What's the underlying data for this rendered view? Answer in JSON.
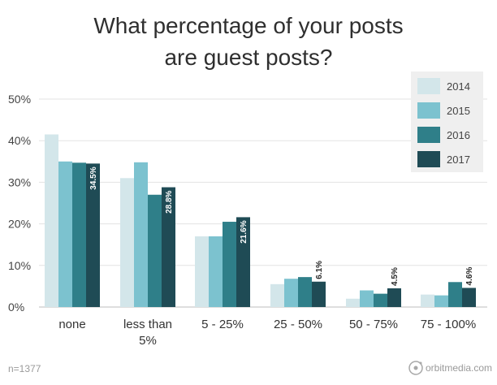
{
  "chart_data": {
    "type": "bar",
    "title_lines": [
      "What percentage of your posts",
      "are guest posts?"
    ],
    "categories": [
      [
        "none"
      ],
      [
        "less than",
        "5%"
      ],
      [
        "5 - 25%"
      ],
      [
        "25 - 50%"
      ],
      [
        "50 - 75%"
      ],
      [
        "75 - 100%"
      ]
    ],
    "series": [
      {
        "name": "2014",
        "color": "#d3e6ea",
        "values": [
          41.5,
          31,
          17,
          5.5,
          2,
          3
        ]
      },
      {
        "name": "2015",
        "color": "#7cc2cf",
        "values": [
          35,
          34.8,
          17,
          6.8,
          4,
          2.8
        ]
      },
      {
        "name": "2016",
        "color": "#2f7f89",
        "values": [
          34.7,
          27,
          20.5,
          7.2,
          3.2,
          6
        ]
      },
      {
        "name": "2017",
        "color": "#1f4b55",
        "values": [
          34.5,
          28.8,
          21.6,
          6.1,
          4.5,
          4.6
        ]
      }
    ],
    "data_labels": {
      "series": "2017",
      "texts": [
        "34.5%",
        "28.8%",
        "21.6%",
        "6.1%",
        "4.5%",
        "4.6%"
      ]
    },
    "ylim": [
      0,
      50
    ],
    "yticks": [
      0,
      10,
      20,
      30,
      40,
      50
    ],
    "ytick_labels": [
      "0%",
      "10%",
      "20%",
      "30%",
      "40%",
      "50%"
    ],
    "grid": true,
    "legend_position": "top-right"
  },
  "footnote": "n=1377",
  "brand": {
    "name": "orbitmedia.com",
    "icon": "orbit-logo-icon"
  }
}
